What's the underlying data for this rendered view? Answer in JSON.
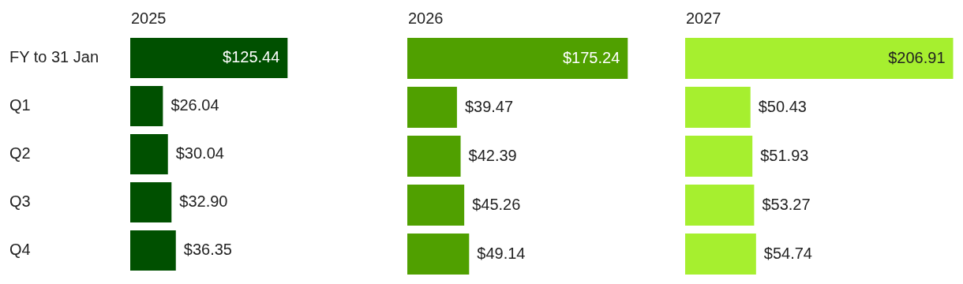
{
  "chart_data": [
    {
      "type": "bar",
      "orientation": "horizontal",
      "title": "2025",
      "tick_labels": "y",
      "categories": [
        "FY to 31 Jan",
        "Q1",
        "Q2",
        "Q3",
        "Q4"
      ],
      "series": [
        {
          "color": "#005000",
          "values": [
            125.44,
            26.04,
            30.04,
            32.9,
            36.35
          ],
          "value_labels": [
            "$125.44",
            "$26.04",
            "$30.04",
            "$32.90",
            "$36.35"
          ]
        }
      ]
    },
    {
      "type": "bar",
      "orientation": "horizontal",
      "title": "2026",
      "tick_labels": false,
      "categories": [
        null,
        null,
        null,
        null,
        null
      ],
      "series": [
        {
          "color": "#50a000",
          "values": [
            175.24,
            39.47,
            42.39,
            45.26,
            49.14
          ],
          "value_labels": [
            "$175.24",
            "$39.47",
            "$42.39",
            "$45.26",
            "$49.14"
          ]
        }
      ]
    },
    {
      "type": "bar",
      "orientation": "horizontal",
      "title": "2027",
      "tick_labels": false,
      "categories": [
        null,
        null,
        null,
        null,
        null
      ],
      "series": [
        {
          "color": "#a6ef2f",
          "values": [
            206.91,
            50.43,
            51.93,
            53.27,
            54.74
          ],
          "value_labels": [
            "$206.91",
            "$50.43",
            "$51.93",
            "$53.27",
            "$54.74"
          ]
        }
      ]
    }
  ]
}
